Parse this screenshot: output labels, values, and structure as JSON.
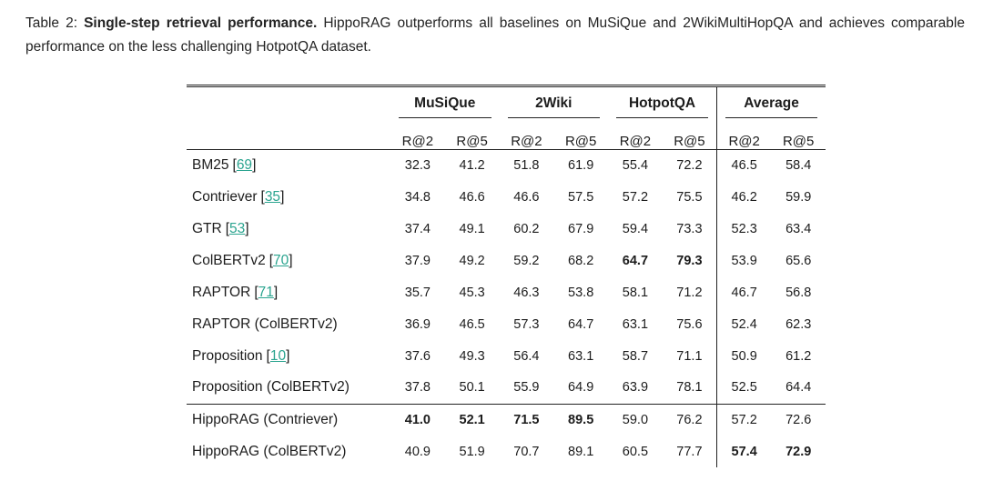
{
  "caption": {
    "prefix": "Table 2: ",
    "bold": "Single-step retrieval performance.",
    "rest": " HippoRAG outperforms all baselines on MuSiQue and 2WikiMultiHopQA and achieves comparable performance on the less challenging HotpotQA dataset."
  },
  "colors": {
    "citation": "#2aa48f",
    "rule": "#222222",
    "text": "#1c1c1c"
  },
  "table": {
    "cite_open": "[",
    "cite_close": "]",
    "groups": [
      {
        "label": "MuSiQue"
      },
      {
        "label": "2Wiki"
      },
      {
        "label": "HotpotQA"
      },
      {
        "label": "Average"
      }
    ],
    "subheaders": [
      "R@2",
      "R@5",
      "R@2",
      "R@5",
      "R@2",
      "R@5",
      "R@2",
      "R@5"
    ],
    "rows": [
      {
        "label": "BM25",
        "cite": "69",
        "values": [
          "32.3",
          "41.2",
          "51.8",
          "61.9",
          "55.4",
          "72.2",
          "46.5",
          "58.4"
        ],
        "bold": []
      },
      {
        "label": "Contriever",
        "cite": "35",
        "values": [
          "34.8",
          "46.6",
          "46.6",
          "57.5",
          "57.2",
          "75.5",
          "46.2",
          "59.9"
        ],
        "bold": []
      },
      {
        "label": "GTR",
        "cite": "53",
        "values": [
          "37.4",
          "49.1",
          "60.2",
          "67.9",
          "59.4",
          "73.3",
          "52.3",
          "63.4"
        ],
        "bold": []
      },
      {
        "label": "ColBERTv2",
        "cite": "70",
        "values": [
          "37.9",
          "49.2",
          "59.2",
          "68.2",
          "64.7",
          "79.3",
          "53.9",
          "65.6"
        ],
        "bold": [
          4,
          5
        ]
      },
      {
        "label": "RAPTOR",
        "cite": "71",
        "values": [
          "35.7",
          "45.3",
          "46.3",
          "53.8",
          "58.1",
          "71.2",
          "46.7",
          "56.8"
        ],
        "bold": []
      },
      {
        "label": "RAPTOR (ColBERTv2)",
        "cite": null,
        "values": [
          "36.9",
          "46.5",
          "57.3",
          "64.7",
          "63.1",
          "75.6",
          "52.4",
          "62.3"
        ],
        "bold": []
      },
      {
        "label": "Proposition",
        "cite": "10",
        "values": [
          "37.6",
          "49.3",
          "56.4",
          "63.1",
          "58.7",
          "71.1",
          "50.9",
          "61.2"
        ],
        "bold": []
      },
      {
        "label": "Proposition (ColBERTv2)",
        "cite": null,
        "values": [
          "37.8",
          "50.1",
          "55.9",
          "64.9",
          "63.9",
          "78.1",
          "52.5",
          "64.4"
        ],
        "bold": []
      },
      {
        "label": "HippoRAG (Contriever)",
        "cite": null,
        "values": [
          "41.0",
          "52.1",
          "71.5",
          "89.5",
          "59.0",
          "76.2",
          "57.2",
          "72.6"
        ],
        "bold": [
          0,
          1,
          2,
          3
        ],
        "section": true
      },
      {
        "label": "HippoRAG (ColBERTv2)",
        "cite": null,
        "values": [
          "40.9",
          "51.9",
          "70.7",
          "89.1",
          "60.5",
          "77.7",
          "57.4",
          "72.9"
        ],
        "bold": [
          6,
          7
        ]
      }
    ]
  }
}
